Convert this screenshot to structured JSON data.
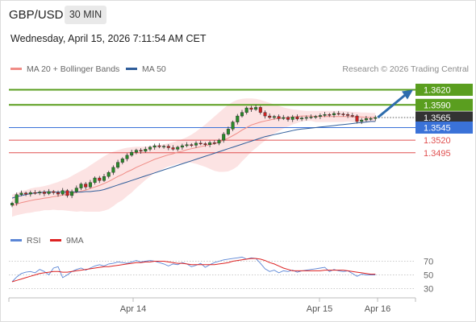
{
  "header": {
    "pair": "GBP/USD",
    "timeframe": "30 MIN",
    "datetime": "Wednesday, April 15, 2026 7:11:54 AM CET"
  },
  "legend": {
    "ma20_label": "MA 20 + Bollinger Bands",
    "ma50_label": "MA 50",
    "credit": "Research © 2026 Trading Central",
    "colors": {
      "ma20": "#f08c86",
      "ma50": "#2f5d9a",
      "band": "#fbdada"
    }
  },
  "rsi_legend": {
    "rsi_label": "RSI",
    "ma9_label": "9MA",
    "colors": {
      "rsi": "#5b86d6",
      "ma9": "#dd2222"
    }
  },
  "chart_data": [
    {
      "type": "candlestick",
      "title": "GBP/USD",
      "ylim": [
        1.337,
        1.3632
      ],
      "levels": [
        {
          "value": 1.362,
          "label": "1.3620",
          "kind": "target",
          "color": "#5a9e1f"
        },
        {
          "value": 1.359,
          "label": "1.3590",
          "kind": "target",
          "color": "#5a9e1f"
        },
        {
          "value": 1.3565,
          "label": "1.3565",
          "kind": "last",
          "color": "#333333"
        },
        {
          "value": 1.3545,
          "label": "1.3545",
          "kind": "pivot",
          "color": "#3a72d8"
        },
        {
          "value": 1.352,
          "label": "1.3520",
          "kind": "support",
          "color": "#e05050"
        },
        {
          "value": 1.3495,
          "label": "1.3495",
          "kind": "support",
          "color": "#e05050"
        }
      ],
      "x_tick_labels": [
        "Apr 14",
        "Apr 15",
        "Apr 16"
      ],
      "close": [
        1.3395,
        1.3412,
        1.3415,
        1.3413,
        1.3416,
        1.3415,
        1.3417,
        1.3414,
        1.3418,
        1.3416,
        1.3413,
        1.342,
        1.341,
        1.3418,
        1.3425,
        1.3433,
        1.3427,
        1.3436,
        1.3445,
        1.344,
        1.3448,
        1.3456,
        1.3466,
        1.3476,
        1.3483,
        1.349,
        1.3496,
        1.35,
        1.3498,
        1.3502,
        1.3506,
        1.3509,
        1.3507,
        1.3508,
        1.3505,
        1.3502,
        1.3506,
        1.3509,
        1.3511,
        1.351,
        1.3514,
        1.3513,
        1.3511,
        1.3515,
        1.3514,
        1.352,
        1.3532,
        1.3542,
        1.3556,
        1.3568,
        1.3575,
        1.3584,
        1.3581,
        1.3585,
        1.3575,
        1.3568,
        1.3565,
        1.3567,
        1.3563,
        1.3565,
        1.3561,
        1.3566,
        1.3562,
        1.3564,
        1.3565,
        1.3566,
        1.3567,
        1.3569,
        1.3571,
        1.357,
        1.3573,
        1.3572,
        1.3571,
        1.3569,
        1.3568,
        1.3557,
        1.356,
        1.3563,
        1.3563,
        1.3565
      ],
      "ma20": [
        1.339,
        1.3393,
        1.3396,
        1.3398,
        1.34,
        1.3402,
        1.3403,
        1.3405,
        1.3406,
        1.3408,
        1.3409,
        1.3411,
        1.3412,
        1.3414,
        1.3416,
        1.3419,
        1.3421,
        1.3424,
        1.3427,
        1.343,
        1.3434,
        1.3438,
        1.3443,
        1.3448,
        1.3452,
        1.3457,
        1.3461,
        1.3466,
        1.347,
        1.3474,
        1.3478,
        1.3482,
        1.3485,
        1.3488,
        1.3491,
        1.3493,
        1.3496,
        1.3498,
        1.3501,
        1.3503,
        1.3505,
        1.3507,
        1.3509,
        1.3511,
        1.3513,
        1.3516,
        1.352,
        1.3524,
        1.3529,
        1.3534,
        1.354,
        1.3545,
        1.355,
        1.3553,
        1.3556,
        1.3558,
        1.356,
        1.3562,
        1.3563,
        1.3564,
        1.3565,
        1.3566,
        1.3567,
        1.3568,
        1.3568,
        1.3568,
        1.3567,
        1.3567,
        1.3567,
        1.3567,
        1.3567,
        1.3567,
        1.3567,
        1.3567,
        1.3566,
        1.3566,
        1.3566,
        1.3565,
        1.3565,
        1.3565
      ],
      "band_upper": [
        1.3412,
        1.3415,
        1.3419,
        1.3421,
        1.3424,
        1.3426,
        1.3427,
        1.3429,
        1.3431,
        1.3434,
        1.3437,
        1.3441,
        1.3444,
        1.3449,
        1.3454,
        1.3459,
        1.3464,
        1.347,
        1.3476,
        1.3482,
        1.3488,
        1.3493,
        1.3497,
        1.35,
        1.3503,
        1.3505,
        1.3506,
        1.3507,
        1.3507,
        1.3507,
        1.3508,
        1.3509,
        1.351,
        1.3512,
        1.3514,
        1.3516,
        1.3519,
        1.3522,
        1.3526,
        1.3531,
        1.3537,
        1.3544,
        1.3551,
        1.3559,
        1.3567,
        1.3575,
        1.3583,
        1.359,
        1.3596,
        1.36,
        1.3602,
        1.3603,
        1.3603,
        1.3602,
        1.36,
        1.3597,
        1.3594,
        1.3591,
        1.3588,
        1.3585,
        1.3583,
        1.3581,
        1.358,
        1.3579,
        1.3578,
        1.3578,
        1.3578,
        1.3578,
        1.3578,
        1.3578,
        1.3578,
        1.3578,
        1.3578,
        1.3577,
        1.3576,
        1.3576,
        1.3575,
        1.3575,
        1.3574,
        1.3574
      ],
      "band_lower": [
        1.3368,
        1.3371,
        1.3373,
        1.3375,
        1.3376,
        1.3378,
        1.3379,
        1.3381,
        1.3381,
        1.3382,
        1.3381,
        1.3381,
        1.338,
        1.3379,
        1.3378,
        1.3379,
        1.3378,
        1.3378,
        1.3378,
        1.3378,
        1.338,
        1.3383,
        1.3389,
        1.3396,
        1.3401,
        1.3409,
        1.3416,
        1.3425,
        1.3433,
        1.3441,
        1.3448,
        1.3455,
        1.346,
        1.3464,
        1.3468,
        1.347,
        1.3473,
        1.3474,
        1.3476,
        1.3475,
        1.3473,
        1.347,
        1.3467,
        1.3463,
        1.3459,
        1.3457,
        1.3457,
        1.3458,
        1.3462,
        1.3468,
        1.3478,
        1.3487,
        1.3497,
        1.3504,
        1.3512,
        1.3519,
        1.3526,
        1.3533,
        1.3538,
        1.3543,
        1.3547,
        1.3551,
        1.3554,
        1.3557,
        1.3558,
        1.3558,
        1.3556,
        1.3556,
        1.3556,
        1.3556,
        1.3556,
        1.3556,
        1.3556,
        1.3557,
        1.3556,
        1.3556,
        1.3557,
        1.3555,
        1.3556,
        1.3556
      ],
      "ma50": [
        1.3405,
        1.3408,
        1.341,
        1.3412,
        1.3414,
        1.3415,
        1.3416,
        1.3417,
        1.3417,
        1.3417,
        1.3417,
        1.3417,
        1.3417,
        1.3417,
        1.3417,
        1.3417,
        1.3418,
        1.3418,
        1.3419,
        1.342,
        1.3422,
        1.3425,
        1.3428,
        1.3431,
        1.3434,
        1.3437,
        1.344,
        1.3443,
        1.3446,
        1.3449,
        1.3452,
        1.3455,
        1.3458,
        1.3461,
        1.3464,
        1.3467,
        1.347,
        1.3473,
        1.3476,
        1.3479,
        1.3482,
        1.3485,
        1.3488,
        1.3491,
        1.3494,
        1.3497,
        1.35,
        1.3503,
        1.3506,
        1.3509,
        1.3512,
        1.3515,
        1.3518,
        1.3521,
        1.3524,
        1.3527,
        1.3529,
        1.3531,
        1.3533,
        1.3535,
        1.3537,
        1.3539,
        1.3541,
        1.3542,
        1.3543,
        1.3544,
        1.3545,
        1.3546,
        1.3547,
        1.3548,
        1.3549,
        1.355,
        1.3551,
        1.3552,
        1.3553,
        1.3554,
        1.3555,
        1.3556,
        1.3557,
        1.3557
      ],
      "forecast": {
        "from": 1.3565,
        "to": 1.362
      }
    },
    {
      "type": "line",
      "title": "RSI",
      "ylim": [
        20,
        80
      ],
      "y_ticks": [
        70,
        50,
        30
      ],
      "series": [
        {
          "name": "RSI",
          "values": [
            40,
            47,
            52,
            54,
            55,
            53,
            58,
            55,
            50,
            60,
            62,
            46,
            50,
            55,
            58,
            60,
            57,
            60,
            63,
            65,
            63,
            66,
            67,
            69,
            68,
            67,
            69,
            71,
            69,
            70,
            71,
            70,
            68,
            66,
            63,
            66,
            65,
            68,
            66,
            62,
            64,
            67,
            61,
            65,
            68,
            70,
            72,
            73,
            74,
            75,
            76,
            73,
            75,
            74,
            67,
            59,
            55,
            57,
            53,
            56,
            55,
            57,
            54,
            56,
            57,
            58,
            59,
            60,
            61,
            55,
            58,
            56,
            55,
            56,
            52,
            48,
            51,
            50,
            50,
            50
          ]
        },
        {
          "name": "9MA",
          "values": [
            40,
            42,
            44,
            46,
            48,
            50,
            52,
            53,
            54,
            55,
            55,
            54,
            54,
            55,
            56,
            57,
            58,
            59,
            60,
            61,
            62,
            62,
            63,
            64,
            65,
            66,
            67,
            68,
            68,
            69,
            69,
            70,
            70,
            70,
            69,
            68,
            67,
            67,
            66,
            65,
            65,
            65,
            65,
            65,
            65,
            66,
            67,
            68,
            70,
            71,
            72,
            73,
            74,
            74,
            73,
            71,
            68,
            66,
            63,
            60,
            58,
            56,
            56,
            56,
            56,
            56,
            56,
            56,
            57,
            57,
            57,
            57,
            57,
            56,
            55,
            54,
            53,
            52,
            51,
            51
          ]
        }
      ]
    }
  ]
}
